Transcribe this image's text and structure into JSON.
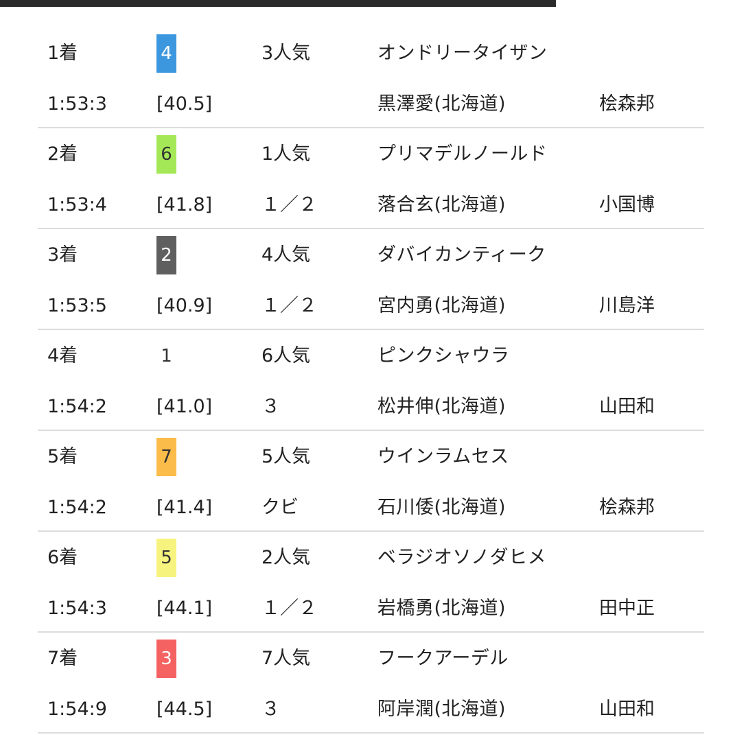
{
  "results": [
    {
      "rank": "1着",
      "horse_number": "4",
      "badge_color": "#3d97de",
      "badge_text_color": "#ffffff",
      "popularity": "3人気",
      "horse_name": "オンドリータイザン",
      "time": "1:53:3",
      "last_3f": "[40.5]",
      "margin": "",
      "jockey": "黒澤愛(北海道)",
      "trainer": "桧森邦"
    },
    {
      "rank": "2着",
      "horse_number": "6",
      "badge_color": "#a4e857",
      "badge_text_color": "#333333",
      "popularity": "1人気",
      "horse_name": "プリマデルノールド",
      "time": "1:53:4",
      "last_3f": "[41.8]",
      "margin": "１／２",
      "jockey": "落合玄(北海道)",
      "trainer": "小国博"
    },
    {
      "rank": "3着",
      "horse_number": "2",
      "badge_color": "#5f5f5f",
      "badge_text_color": "#ffffff",
      "popularity": "4人気",
      "horse_name": "ダバイカンティーク",
      "time": "1:53:5",
      "last_3f": "[40.9]",
      "margin": "１／２",
      "jockey": "宮内勇(北海道)",
      "trainer": "川島洋"
    },
    {
      "rank": "4着",
      "horse_number": "1",
      "badge_color": "#ffffff",
      "badge_text_color": "#333333",
      "popularity": "6人気",
      "horse_name": "ピンクシャウラ",
      "time": "1:54:2",
      "last_3f": "[41.0]",
      "margin": "３",
      "jockey": "松井伸(北海道)",
      "trainer": "山田和"
    },
    {
      "rank": "5着",
      "horse_number": "7",
      "badge_color": "#fbbc4a",
      "badge_text_color": "#333333",
      "popularity": "5人気",
      "horse_name": "ウインラムセス",
      "time": "1:54:2",
      "last_3f": "[41.4]",
      "margin": "クビ",
      "jockey": "石川倭(北海道)",
      "trainer": "桧森邦"
    },
    {
      "rank": "6着",
      "horse_number": "5",
      "badge_color": "#f6f47e",
      "badge_text_color": "#333333",
      "popularity": "2人気",
      "horse_name": "ベラジオソノダヒメ",
      "time": "1:54:3",
      "last_3f": "[44.1]",
      "margin": "１／２",
      "jockey": "岩橋勇(北海道)",
      "trainer": "田中正"
    },
    {
      "rank": "7着",
      "horse_number": "3",
      "badge_color": "#f56262",
      "badge_text_color": "#ffffff",
      "popularity": "7人気",
      "horse_name": "フークアーデル",
      "time": "1:54:9",
      "last_3f": "[44.5]",
      "margin": "３",
      "jockey": "阿岸潤(北海道)",
      "trainer": "山田和"
    }
  ]
}
